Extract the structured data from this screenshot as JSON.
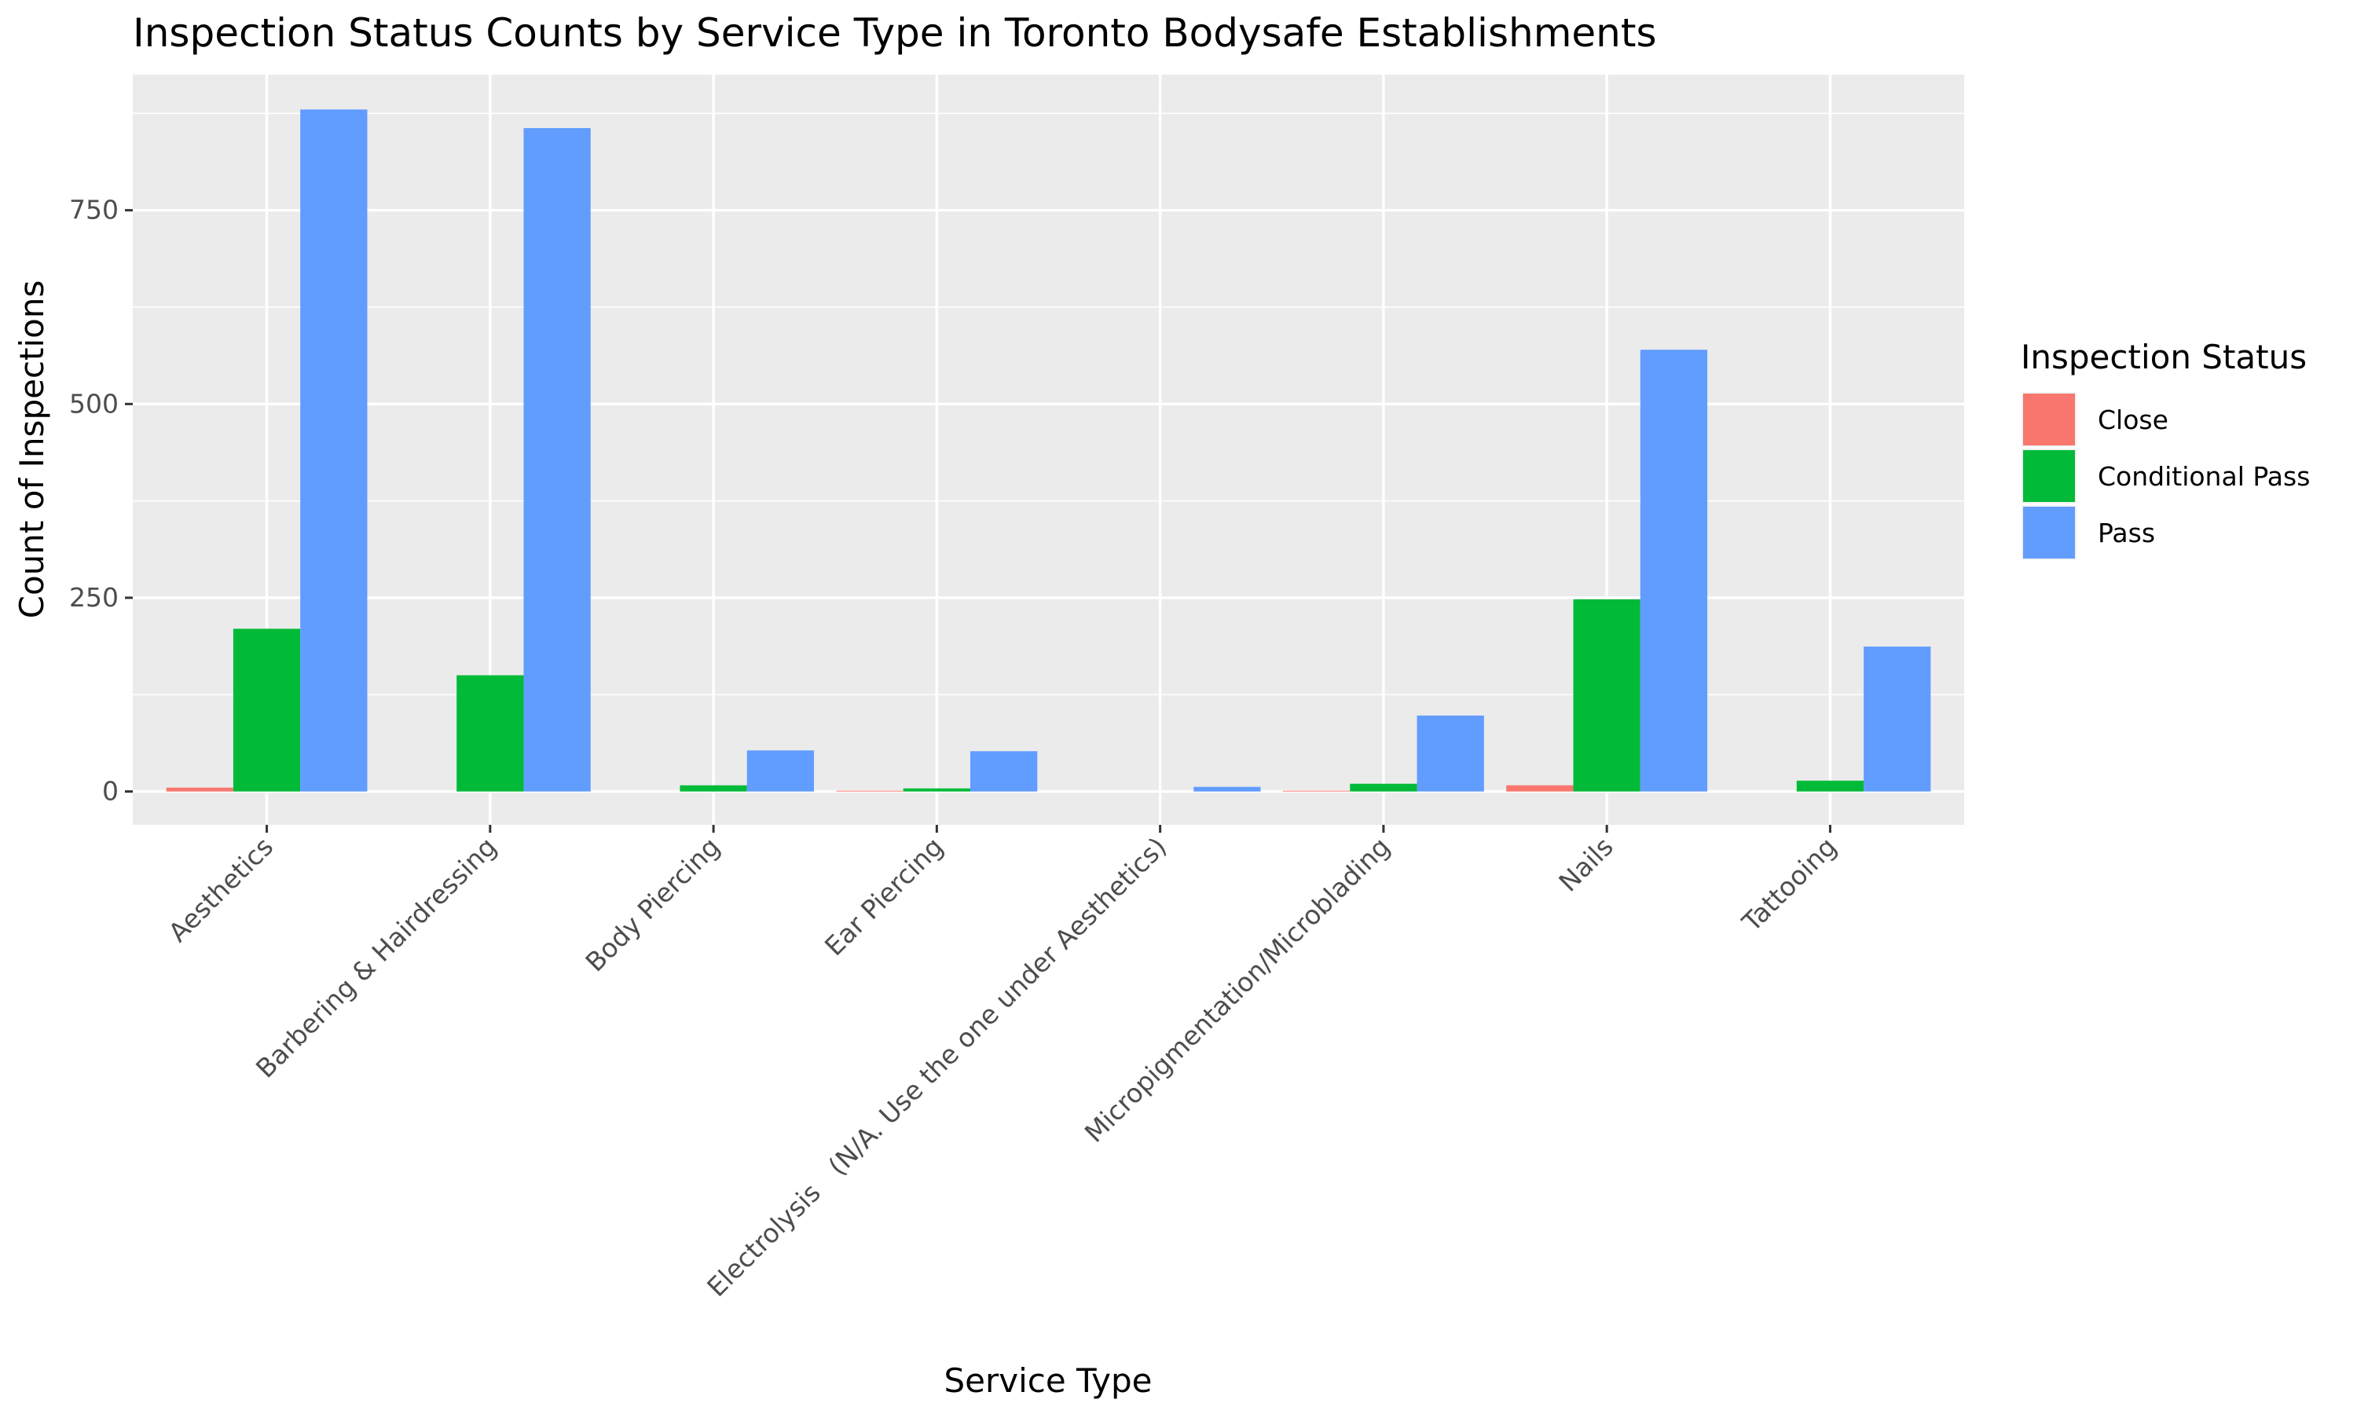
{
  "chart_data": {
    "type": "bar",
    "title": "Inspection Status Counts by Service Type in Toronto Bodysafe Establishments",
    "xlabel": "Service Type",
    "ylabel": "Count of Inspections",
    "categories": [
      "Aesthetics",
      "Barbering & Hairdressing",
      "Body Piercing",
      "Ear Piercing",
      "Electrolysis   (N/A. Use the one under Aesthetics)",
      "Micropigmentation/Microblading",
      "Nails",
      "Tattooing"
    ],
    "series": [
      {
        "name": "Close",
        "color": "#F8766D",
        "values": [
          5,
          null,
          null,
          1,
          null,
          1,
          8,
          null
        ]
      },
      {
        "name": "Conditional Pass",
        "color": "#00BA38",
        "values": [
          210,
          150,
          8,
          4,
          null,
          10,
          248,
          14
        ]
      },
      {
        "name": "Pass",
        "color": "#619CFF",
        "values": [
          880,
          856,
          53,
          52,
          6,
          98,
          570,
          187
        ]
      }
    ],
    "ylim": [
      -43,
      925
    ],
    "yticks": [
      0,
      250,
      500,
      750
    ],
    "legend": {
      "title": "Inspection Status",
      "position": "right"
    },
    "grid": true,
    "x_tick_rotation": 45
  }
}
